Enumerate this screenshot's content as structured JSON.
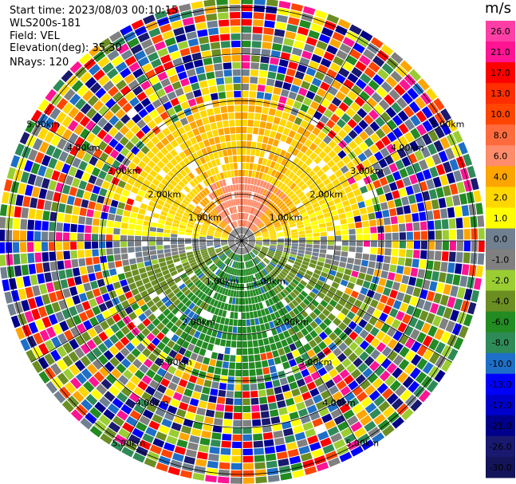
{
  "header": {
    "start_time": "Start time: 2023/08/03 00:10:15",
    "instrument": "WLS200s-181",
    "field": "Field: VEL",
    "elevation": "Elevation(deg): 35.30",
    "nrays": "NRays: 120"
  },
  "colorbar": {
    "unit": "m/s",
    "ticks": [
      "26.0",
      "21.0",
      "17.0",
      "13.0",
      "10.0",
      "8.0",
      "6.0",
      "4.0",
      "2.0",
      "1.0",
      "0.0",
      "-1.0",
      "-2.0",
      "-4.0",
      "-6.0",
      "-8.0",
      "-10.0",
      "-13.0",
      "-17.0",
      "-21.0",
      "-26.0",
      "-30.0"
    ],
    "colors": [
      "#ff3fa6",
      "#ff1493",
      "#ff0000",
      "#ff2d00",
      "#ff4500",
      "#ff6b3d",
      "#ff8c6a",
      "#ffa500",
      "#ffd700",
      "#ffff00",
      "#708090",
      "#808080",
      "#9acd32",
      "#6b8e23",
      "#228b22",
      "#2e8b57",
      "#1e6fc8",
      "#0000ff",
      "#0000cd",
      "#00008b",
      "#191970",
      "#14145a"
    ]
  },
  "chart_data": {
    "type": "heatmap",
    "projection": "polar PPI",
    "field": "VEL",
    "units": "m/s",
    "nrays": 120,
    "elevation_deg": 35.3,
    "range_rings_km": [
      1.0,
      2.0,
      3.0,
      4.0,
      5.0
    ],
    "range_ring_labels": [
      "1.00km",
      "2.00km",
      "3.00km",
      "4.00km",
      "5.00km"
    ],
    "max_range_km": 5.2,
    "color_scale": [
      -30,
      26
    ],
    "pattern": "positive velocities (orange/yellow) in northern half, small negative velocities (green/blue) in southern half, noisy random values beyond ~2.5 km"
  }
}
